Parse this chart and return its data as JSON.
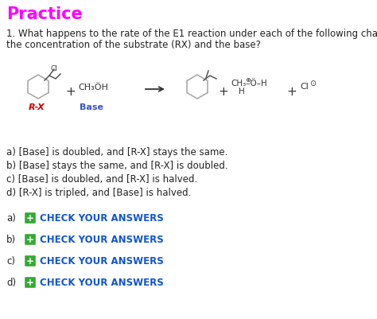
{
  "title": "Practice",
  "title_color": "#FF00FF",
  "title_fontsize": 15,
  "background_color": "#FFFFFF",
  "question_line1": "1. What happens to the rate of the E1 reaction under each of the following changes in",
  "question_line2": "the concentration of the substrate (RX) and the base?",
  "question_fontsize": 8.5,
  "question_color": "#222222",
  "options": [
    "a) [Base] is doubled, and [R-X] stays the same.",
    "b) [Base] stays the same, and [R-X] is doubled.",
    "c) [Base] is doubled, and [R-X] is halved.",
    "d) [R-X] is tripled, and [Base] is halved."
  ],
  "options_fontsize": 8.5,
  "options_color": "#222222",
  "check_labels": [
    "a)",
    "b)",
    "c)",
    "d)"
  ],
  "check_text": "CHECK YOUR ANSWERS",
  "check_color": "#1155CC",
  "check_fontsize": 8.5,
  "check_label_color": "#222222",
  "plus_color": "#33AA33",
  "rx_label": "R-X",
  "rx_color": "#CC0000",
  "base_label": "Base",
  "base_color": "#3355CC"
}
